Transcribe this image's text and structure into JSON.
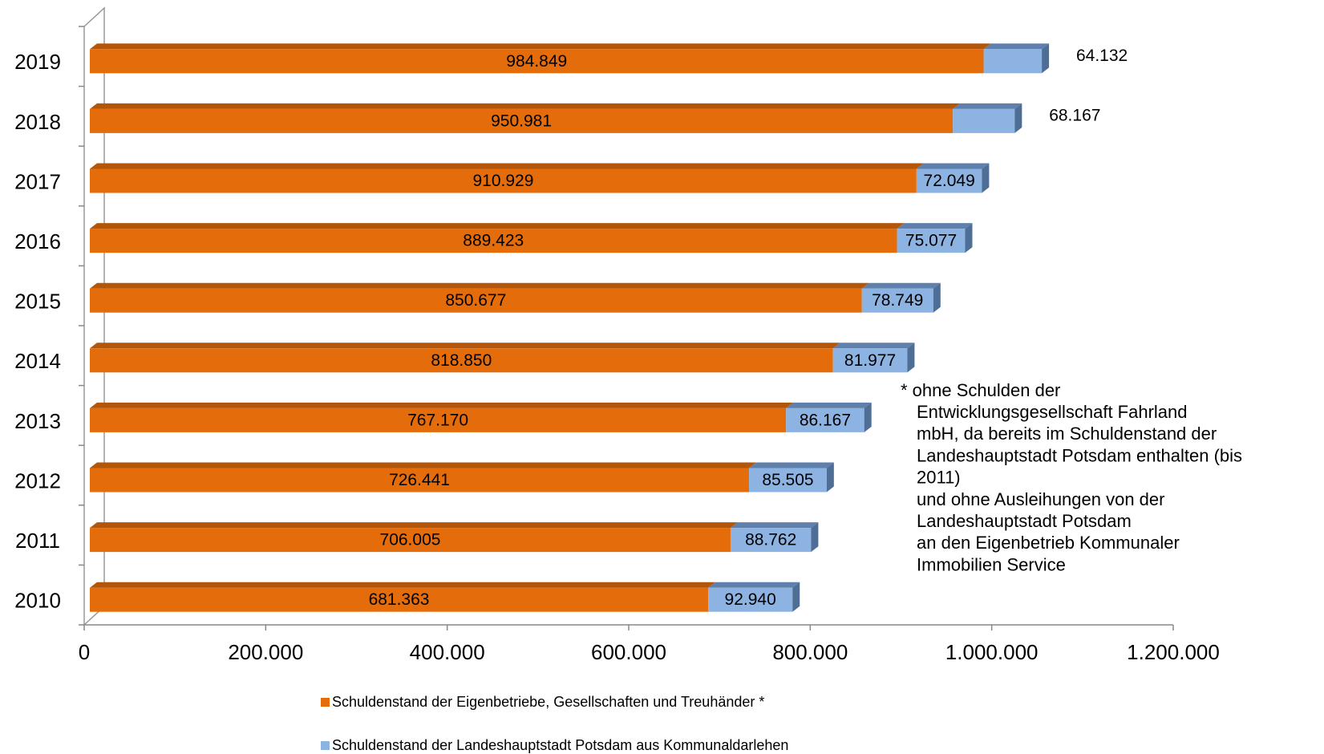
{
  "chart_data": {
    "type": "bar",
    "orientation": "horizontal",
    "stacked": true,
    "categories": [
      "2010",
      "2011",
      "2012",
      "2013",
      "2014",
      "2015",
      "2016",
      "2017",
      "2018",
      "2019"
    ],
    "series": [
      {
        "name": "Schuldenstand der Eigenbetriebe, Gesellschaften und Treuhänder *",
        "color": "#e46c0a",
        "values": [
          681363,
          706005,
          726441,
          767170,
          818850,
          850677,
          889423,
          910929,
          950981,
          984849
        ],
        "value_labels": [
          "681.363",
          "706.005",
          "726.441",
          "767.170",
          "818.850",
          "850.677",
          "889.423",
          "910.929",
          "950.981",
          "984.849"
        ]
      },
      {
        "name": "Schuldenstand der Landeshauptstadt Potsdam aus Kommunaldarlehen",
        "color": "#8db3e2",
        "values": [
          92940,
          88762,
          85505,
          86167,
          81977,
          78749,
          75077,
          72049,
          68167,
          64132
        ],
        "value_labels": [
          "92.940",
          "88.762",
          "85.505",
          "86.167",
          "81.977",
          "78.749",
          "75.077",
          "72.049",
          "68.167",
          "64.132"
        ]
      }
    ],
    "xlim": [
      0,
      1200000
    ],
    "xticks": [
      0,
      {
        "value": 200000,
        "label": "200.000"
      },
      {
        "value": 400000,
        "label": "400.000"
      },
      {
        "value": 600000,
        "label": "600.000"
      },
      {
        "value": 800000,
        "label": "800.000"
      },
      {
        "value": 1000000,
        "label": "1.000.000"
      },
      {
        "value": 1200000,
        "label": "1.200.000"
      }
    ],
    "annotation": [
      "* ohne Schulden der",
      "Entwicklungsgesellschaft Fahrland",
      "mbH, da bereits im Schuldenstand der",
      "Landeshauptstadt Potsdam enthalten  (bis",
      "2011)",
      "und  ohne Ausleihungen von der",
      "Landeshauptstadt Potsdam",
      "an den Eigenbetrieb Kommunaler",
      "Immobilien Service"
    ],
    "legend": "bottom"
  }
}
